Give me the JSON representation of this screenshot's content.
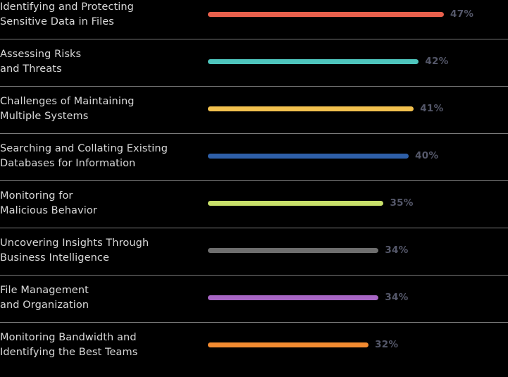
{
  "chart_data": {
    "type": "bar",
    "orientation": "horizontal",
    "categories": [
      [
        "Identifying and Protecting",
        "Sensitive Data in Files"
      ],
      [
        "Assessing Risks",
        "and Threats"
      ],
      [
        "Challenges of Maintaining",
        "Multiple Systems"
      ],
      [
        "Searching and Collating Existing",
        "Databases for Information"
      ],
      [
        "Monitoring for",
        "Malicious Behavior"
      ],
      [
        "Uncovering Insights Through",
        "Business Intelligence"
      ],
      [
        "File Management",
        "and Organization"
      ],
      [
        "Monitoring Bandwidth and",
        "Identifying the Best Teams"
      ]
    ],
    "values": [
      47,
      42,
      41,
      40,
      35,
      34,
      34,
      32
    ],
    "value_labels": [
      "47%",
      "42%",
      "41%",
      "40%",
      "35%",
      "34%",
      "34%",
      "32%"
    ],
    "colors": [
      "#e8604c",
      "#4ec5bd",
      "#f2c14e",
      "#2e5fa8",
      "#c8e06a",
      "#6e6e6e",
      "#a765c4",
      "#f28a30"
    ],
    "unit": "%",
    "xlim": [
      0,
      50
    ],
    "grid": false,
    "legend": "none"
  }
}
